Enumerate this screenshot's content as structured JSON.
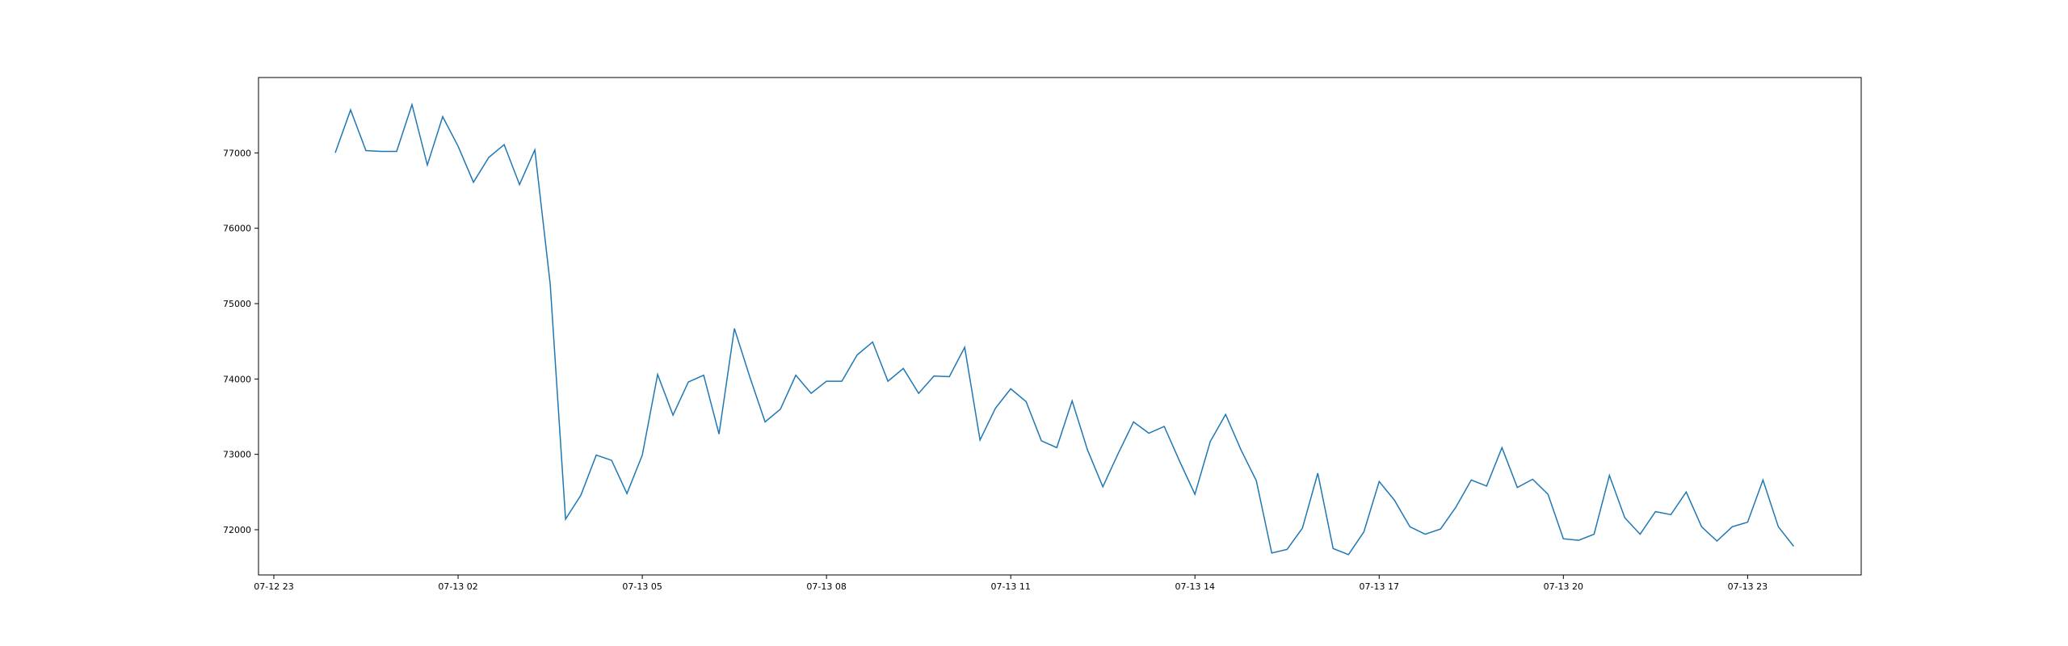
{
  "chart_data": {
    "type": "line",
    "title": "",
    "xlabel": "",
    "ylabel": "",
    "grid": false,
    "line_color": "#1f77b4",
    "x_tick_labels": [
      "07-12 23",
      "07-13 02",
      "07-13 05",
      "07-13 08",
      "07-13 11",
      "07-13 14",
      "07-13 17",
      "07-13 20",
      "07-13 23"
    ],
    "x_tick_hours": [
      23,
      26,
      29,
      32,
      35,
      38,
      41,
      44,
      47
    ],
    "xlim_hours": [
      22.75,
      48.85
    ],
    "y_ticks": [
      72000,
      73000,
      74000,
      75000,
      76000,
      77000
    ],
    "y_tick_labels": [
      "72000",
      "73000",
      "74000",
      "75000",
      "76000",
      "77000"
    ],
    "ylim": [
      71400,
      78000
    ],
    "series": [
      {
        "x_start": "07-13 00:00",
        "x_step_minutes": 15,
        "values": [
          77000,
          77570,
          77030,
          77020,
          77020,
          77640,
          76840,
          77480,
          77090,
          76610,
          76940,
          77110,
          76580,
          77040,
          75260,
          72140,
          72460,
          72990,
          72920,
          72480,
          72990,
          74060,
          73520,
          73960,
          74050,
          73270,
          74670,
          74030,
          73430,
          73600,
          74050,
          73810,
          73970,
          73970,
          74320,
          74490,
          73970,
          74140,
          73810,
          74040,
          74030,
          74420,
          73190,
          73610,
          73870,
          73700,
          73180,
          73090,
          73710,
          73060,
          72570,
          73010,
          73430,
          73280,
          73370,
          72910,
          72470,
          73170,
          73530,
          73060,
          72650,
          71690,
          71740,
          72020,
          72750,
          71750,
          71670,
          71970,
          72640,
          72390,
          72040,
          71940,
          72010,
          72300,
          72660,
          72580,
          73090,
          72560,
          72670,
          72470,
          71880,
          71860,
          71940,
          72720,
          72160,
          71940,
          72240,
          72200,
          72500,
          72040,
          71850,
          72040,
          72100,
          72660,
          72040,
          71780
        ]
      }
    ]
  }
}
